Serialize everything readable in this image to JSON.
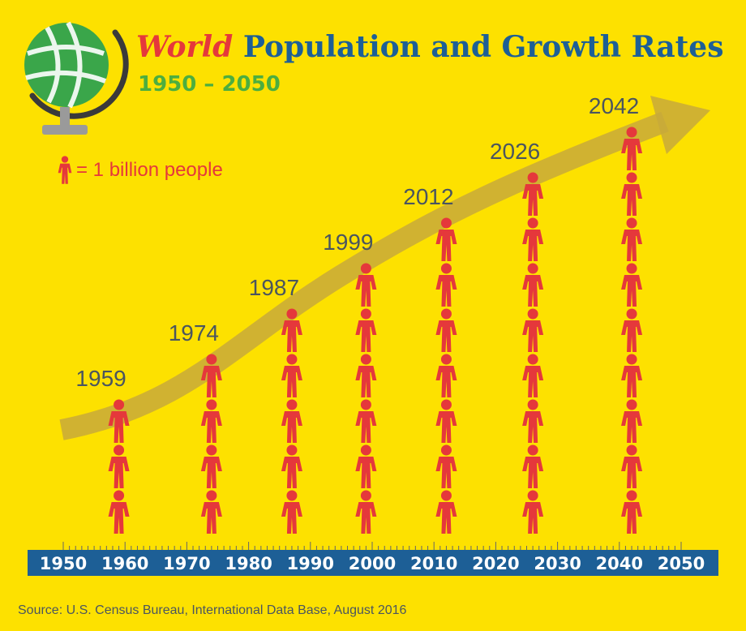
{
  "title": {
    "accent": "World",
    "rest": " Population and Growth Rates"
  },
  "subtitle": "1950 – 2050",
  "legend": {
    "text": "= 1 billion people",
    "icon": "person-icon"
  },
  "source": "Source: U.S. Census Bureau, International Data Base, August 2016",
  "colors": {
    "background": "#fde100",
    "person": "#e5383b",
    "arrow": "#c8a93a",
    "axis_band": "#1d5f96",
    "title_blue": "#1d5f96",
    "title_red": "#e5383b",
    "subtitle_green": "#4cae3f",
    "label_gray": "#4a5560"
  },
  "chart_data": {
    "type": "bar",
    "x_ticks": [
      "1950",
      "1960",
      "1970",
      "1980",
      "1990",
      "2000",
      "2010",
      "2020",
      "2030",
      "2040",
      "2050"
    ],
    "xlim": [
      1950,
      2050
    ],
    "unit": "1 billion people",
    "milestones": [
      {
        "year": 1959,
        "label": "1959",
        "billions": 3
      },
      {
        "year": 1974,
        "label": "1974",
        "billions": 4
      },
      {
        "year": 1987,
        "label": "1987",
        "billions": 5
      },
      {
        "year": 1999,
        "label": "1999",
        "billions": 6
      },
      {
        "year": 2012,
        "label": "2012",
        "billions": 7
      },
      {
        "year": 2026,
        "label": "2026",
        "billions": 8
      },
      {
        "year": 2042,
        "label": "2042",
        "billions": 9
      }
    ],
    "trend": "growth arrow rising from 1950 toward 2050",
    "grid": false
  }
}
